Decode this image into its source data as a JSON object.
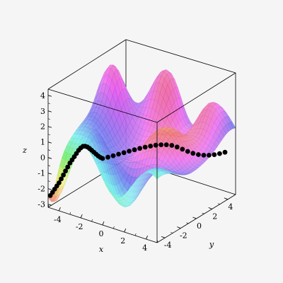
{
  "chart_data": {
    "type": "surface3d",
    "title": "",
    "xlabel": "x",
    "ylabel": "y",
    "zlabel": "z",
    "xlim": [
      -5,
      5
    ],
    "ylim": [
      -5,
      5
    ],
    "zlim": [
      -3.2,
      4.4
    ],
    "x_ticks": [
      "-4",
      "-2",
      "0",
      "2",
      "4"
    ],
    "y_ticks": [
      "-4",
      "-2",
      "0",
      "2",
      "4"
    ],
    "z_ticks": [
      "-3",
      "-2",
      "-1",
      "0",
      "1",
      "2",
      "3",
      "4"
    ],
    "surface_style": "patch with transparent rainbow shading",
    "grid": false,
    "axes_style": "boxed",
    "curve": {
      "style": "black point markers",
      "points": [
        {
          "x": -4.8,
          "y": -5.0,
          "z": -2.4
        },
        {
          "x": -4.6,
          "y": -5.0,
          "z": -2.15
        },
        {
          "x": -4.4,
          "y": -5.0,
          "z": -1.9
        },
        {
          "x": -4.2,
          "y": -5.0,
          "z": -1.65
        },
        {
          "x": -4.0,
          "y": -5.0,
          "z": -1.4
        },
        {
          "x": -3.8,
          "y": -5.0,
          "z": -1.1
        },
        {
          "x": -3.6,
          "y": -5.0,
          "z": -0.8
        },
        {
          "x": -3.4,
          "y": -5.0,
          "z": -0.5
        },
        {
          "x": -3.2,
          "y": -5.0,
          "z": -0.2
        },
        {
          "x": -3.0,
          "y": -5.0,
          "z": 0.1
        },
        {
          "x": -2.8,
          "y": -5.0,
          "z": 0.35
        },
        {
          "x": -2.6,
          "y": -5.0,
          "z": 0.6
        },
        {
          "x": -2.4,
          "y": -5.0,
          "z": 0.85
        },
        {
          "x": -2.2,
          "y": -5.0,
          "z": 1.1
        },
        {
          "x": -2.0,
          "y": -5.0,
          "z": 1.3
        },
        {
          "x": -1.8,
          "y": -5.0,
          "z": 1.45
        },
        {
          "x": -1.6,
          "y": -5.0,
          "z": 1.5
        },
        {
          "x": -1.4,
          "y": -5.0,
          "z": 1.5
        },
        {
          "x": -1.2,
          "y": -5.0,
          "z": 1.45
        },
        {
          "x": -1.0,
          "y": -5.0,
          "z": 1.38
        },
        {
          "x": -0.8,
          "y": -5.0,
          "z": 1.3
        },
        {
          "x": -0.6,
          "y": -5.0,
          "z": 1.22
        },
        {
          "x": -0.4,
          "y": -5.0,
          "z": 1.15
        },
        {
          "x": -0.2,
          "y": -5.0,
          "z": 1.1
        },
        {
          "x": 0.0,
          "y": -5.0,
          "z": 1.08
        },
        {
          "x": 0.2,
          "y": -4.6,
          "z": 1.08
        },
        {
          "x": 0.4,
          "y": -4.2,
          "z": 1.1
        },
        {
          "x": 0.6,
          "y": -3.8,
          "z": 1.12
        },
        {
          "x": 0.8,
          "y": -3.4,
          "z": 1.14
        },
        {
          "x": 1.0,
          "y": -3.0,
          "z": 1.16
        },
        {
          "x": 1.2,
          "y": -2.6,
          "z": 1.17
        },
        {
          "x": 1.4,
          "y": -2.2,
          "z": 1.18
        },
        {
          "x": 1.6,
          "y": -1.8,
          "z": 1.18
        },
        {
          "x": 1.8,
          "y": -1.4,
          "z": 1.17
        },
        {
          "x": 2.0,
          "y": -1.0,
          "z": 1.15
        },
        {
          "x": 2.2,
          "y": -0.6,
          "z": 1.1
        },
        {
          "x": 2.4,
          "y": -0.2,
          "z": 1.02
        },
        {
          "x": 2.6,
          "y": 0.2,
          "z": 0.9
        },
        {
          "x": 2.8,
          "y": 0.6,
          "z": 0.72
        },
        {
          "x": 3.0,
          "y": 1.0,
          "z": 0.5
        },
        {
          "x": 3.2,
          "y": 1.4,
          "z": 0.28
        },
        {
          "x": 3.4,
          "y": 1.8,
          "z": 0.08
        },
        {
          "x": 3.6,
          "y": 2.2,
          "z": -0.08
        },
        {
          "x": 3.8,
          "y": 2.6,
          "z": -0.2
        },
        {
          "x": 4.0,
          "y": 3.0,
          "z": -0.28
        },
        {
          "x": 4.2,
          "y": 3.4,
          "z": -0.32
        },
        {
          "x": 4.4,
          "y": 3.8,
          "z": -0.33
        },
        {
          "x": 4.6,
          "y": 4.2,
          "z": -0.32
        }
      ]
    }
  }
}
